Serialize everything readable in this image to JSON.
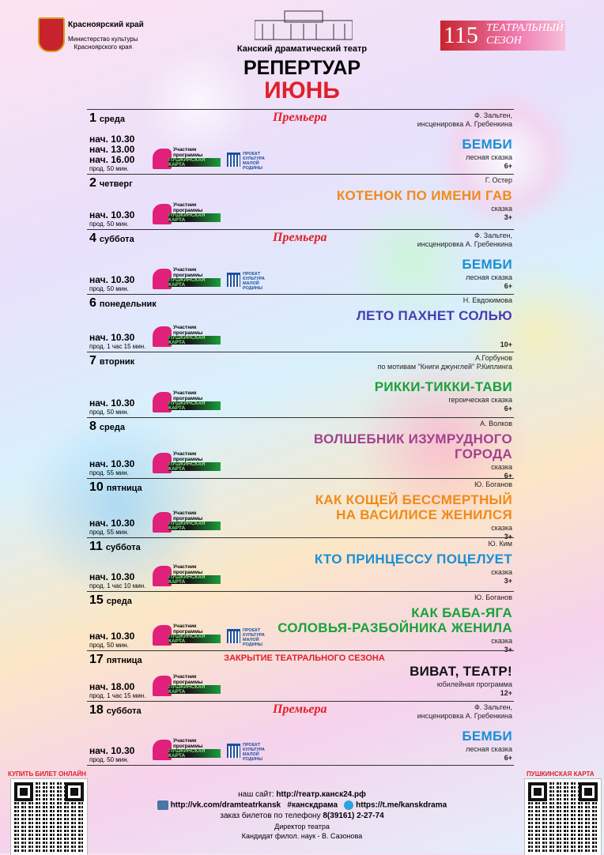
{
  "header": {
    "region": "Красноярский край",
    "ministry": [
      "Министерство культуры",
      "Красноярского края"
    ],
    "theatre": "Канский драматический театр",
    "title": "РЕПЕРТУАР",
    "month": "ИЮНЬ",
    "season_number": "115",
    "season_text": [
      "ТЕАТРАЛЬНЫЙ",
      "СЕЗОН"
    ]
  },
  "badges": {
    "participant": "Участник программы",
    "pushkin": "ПУШКИНСКАЯ КАРТА",
    "project": [
      "ПРОЕКТ",
      "КУЛЬТУРА",
      "МАЛОЙ РОДИНЫ"
    ]
  },
  "events": [
    {
      "day": "1",
      "weekday": "среда",
      "premiere": "Премьера",
      "times": [
        "нач. 10.30",
        "нач. 13.00",
        "нач. 16.00"
      ],
      "duration": "прод. 50 мин.",
      "author": [
        "Ф. Зальтен,",
        "инсценировка А. Гребенкина"
      ],
      "title": [
        "БЕМБИ"
      ],
      "color": "#1b8fd2",
      "genre": "лесная сказка",
      "age": "6+",
      "project": true
    },
    {
      "day": "2",
      "weekday": "четверг",
      "times": [
        "нач. 10.30"
      ],
      "duration": "прод. 50 мин.",
      "author": [
        "Г. Остер"
      ],
      "title": [
        "КОТЕНОК ПО ИМЕНИ ГАВ"
      ],
      "color": "#f08a1c",
      "genre": "сказка",
      "age": "3+",
      "project": false
    },
    {
      "day": "4",
      "weekday": "суббота",
      "premiere": "Премьера",
      "times": [
        "нач. 10.30"
      ],
      "duration": "прод. 50 мин.",
      "author": [
        "Ф. Зальтен,",
        "инсценировка А. Гребенкина"
      ],
      "title": [
        "БЕМБИ"
      ],
      "color": "#1b8fd2",
      "genre": "лесная сказка",
      "age": "6+",
      "project": true
    },
    {
      "day": "6",
      "weekday": "понедельник",
      "times": [
        "нач. 10.30"
      ],
      "duration": "прод. 1 час 15 мин.",
      "author": [
        "Н. Евдокимова"
      ],
      "title": [
        "ЛЕТО ПАХНЕТ СОЛЬЮ"
      ],
      "color": "#4a3cb4",
      "age": "10+",
      "project": false
    },
    {
      "day": "7",
      "weekday": "вторник",
      "times": [
        "нач. 10.30"
      ],
      "duration": "прод. 50 мин.",
      "author": [
        "А.Горбунов",
        "по мотивам \"Книги джунглей\" Р.Киплинга"
      ],
      "title": [
        "РИККИ-ТИККИ-ТАВИ"
      ],
      "color": "#1aa23a",
      "genre": "героическая сказка",
      "age": "6+",
      "project": false
    },
    {
      "day": "8",
      "weekday": "среда",
      "times": [
        "нач. 10.30"
      ],
      "duration": "прод. 55 мин.",
      "author": [
        "А. Волков"
      ],
      "title": [
        "ВОЛШЕБНИК ИЗУМРУДНОГО",
        "ГОРОДА"
      ],
      "color": "#a3418e",
      "genre": "сказка",
      "age": "6+",
      "project": false
    },
    {
      "day": "10",
      "weekday": "пятница",
      "times": [
        "нач. 10.30"
      ],
      "duration": "прод. 55 мин.",
      "author": [
        "Ю. Боганов"
      ],
      "title": [
        "КАК КОЩЕЙ БЕССМЕРТНЫЙ",
        "НА ВАСИЛИСЕ ЖЕНИЛСЯ"
      ],
      "color": "#f08a1c",
      "genre": "сказка",
      "age": "3+",
      "project": false
    },
    {
      "day": "11",
      "weekday": "суббота",
      "times": [
        "нач. 10.30"
      ],
      "duration": "прод. 1 час 10 мин.",
      "author": [
        "Ю. Ким"
      ],
      "title": [
        "КТО ПРИНЦЕССУ ПОЦЕЛУЕТ"
      ],
      "color": "#1b8fd2",
      "genre": "сказка",
      "age": "3+",
      "project": false
    },
    {
      "day": "15",
      "weekday": "среда",
      "times": [
        "нач. 10.30"
      ],
      "duration": "прод. 50 мин.",
      "author": [
        "Ю. Боганов"
      ],
      "title": [
        "КАК БАБА-ЯГА",
        "СОЛОВЬЯ-РАЗБОЙНИКА ЖЕНИЛА"
      ],
      "color": "#1aa23a",
      "genre": "сказка",
      "age": "3+",
      "project": true
    },
    {
      "day": "17",
      "weekday": "пятница",
      "note": "ЗАКРЫТИЕ ТЕАТРАЛЬНОГО СЕЗОНА",
      "times": [
        "нач. 18.00"
      ],
      "duration": "прод. 1 час 15 мин.",
      "title": [
        "ВИВАТ, ТЕАТР!"
      ],
      "color": "#111111",
      "genre": "юбилейная программа",
      "age": "12+",
      "project": false
    },
    {
      "day": "18",
      "weekday": "суббота",
      "premiere": "Премьера",
      "times": [
        "нач. 10.30"
      ],
      "duration": "прод. 50 мин.",
      "author": [
        "Ф. Зальтен,",
        "инсценировка А. Гребенкина"
      ],
      "title": [
        "БЕМБИ"
      ],
      "color": "#1b8fd2",
      "genre": "лесная сказка",
      "age": "6+",
      "project": true
    }
  ],
  "footer": {
    "buy_online": "КУПИТЬ БИЛЕТ ОНЛАЙН",
    "pushkin_card": "ПУШКИНСКАЯ КАРТА",
    "site_label": "наш сайт:",
    "site": "http://театр.канск24.рф",
    "vk": "http://vk.com/dramteatrkansk",
    "hashtag": "#канскдрама",
    "telegram": "https://t.me/kanskdrama",
    "phone_label": "заказ билетов по телефону",
    "phone": "8(39161) 2-27-74",
    "director_label": "Директор театра",
    "director": "Кандидат филол. наук - В. Сазонова"
  }
}
